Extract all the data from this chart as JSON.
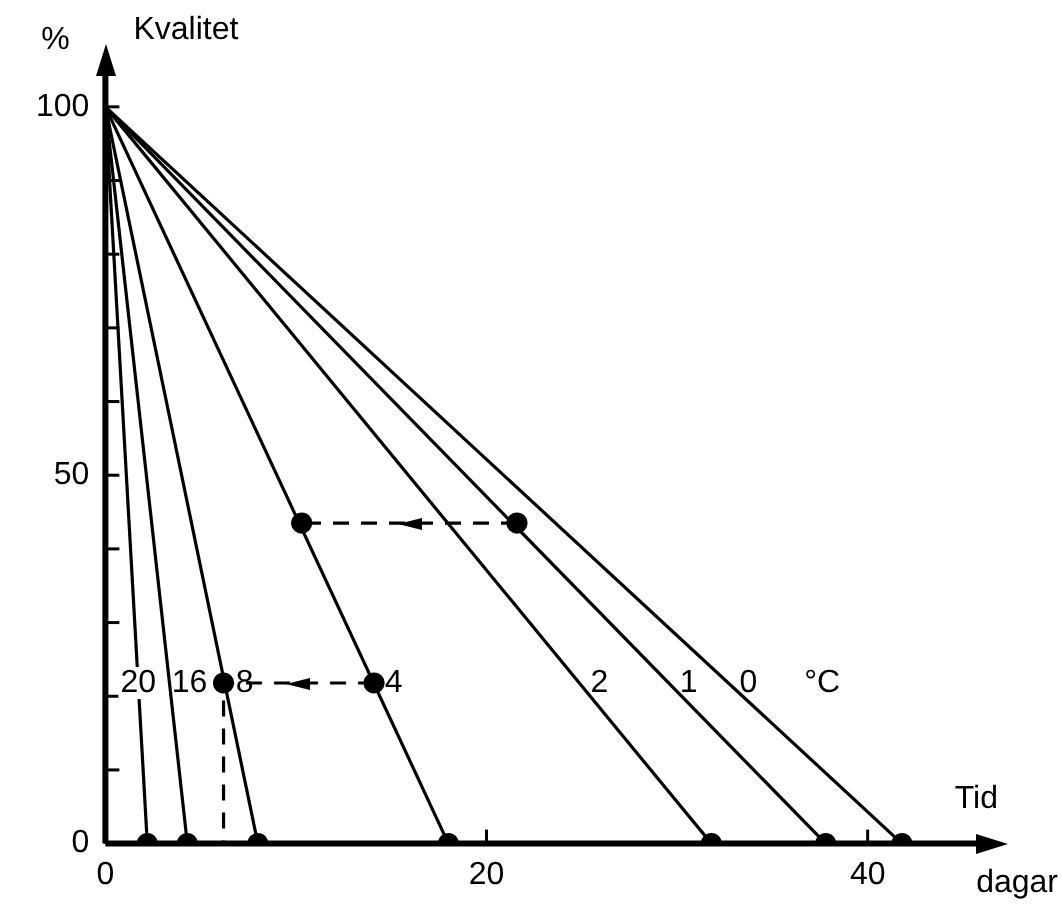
{
  "chart_data": {
    "type": "line",
    "xlabel": "Tid",
    "ylabel": "Kvalitet",
    "legend_title": "°C",
    "annotations": [
      "%",
      "dagar"
    ],
    "xlim": [
      0,
      46
    ],
    "ylim": [
      0,
      105
    ],
    "xticks": [
      0,
      20,
      40
    ],
    "yticks": [
      0,
      {
        "value": 10,
        "label": null
      },
      {
        "value": 20,
        "label": null
      },
      {
        "value": 30,
        "label": null
      },
      {
        "value": 40,
        "label": null
      },
      50,
      {
        "value": 60,
        "label": null
      },
      {
        "value": 70,
        "label": null
      },
      {
        "value": 80,
        "label": null
      },
      {
        "value": 90,
        "label": null
      },
      100
    ],
    "grid": false,
    "legend": "bottom left",
    "marker": "none",
    "line_style": "solid",
    "series": [
      {
        "name": "20",
        "color": "#000000",
        "x": [
          0,
          2.2
        ],
        "values": [
          100,
          0
        ]
      },
      {
        "name": "16",
        "color": "#000000",
        "x": [
          0,
          4.3
        ],
        "values": [
          100,
          0
        ]
      },
      {
        "name": "8",
        "color": "#000000",
        "x": [
          0,
          8
        ],
        "values": [
          100,
          0
        ]
      },
      {
        "name": "4",
        "color": "#000000",
        "x": [
          0,
          18
        ],
        "values": [
          100,
          0
        ]
      },
      {
        "name": "2",
        "color": "#000000",
        "x": [
          0,
          31.8
        ],
        "values": [
          100,
          0
        ]
      },
      {
        "name": "1",
        "color": "#000000",
        "x": [
          0,
          37.8
        ],
        "values": [
          100,
          0
        ]
      },
      {
        "name": "0",
        "color": "#000000",
        "x": [
          0,
          41.8
        ],
        "values": [
          100,
          0
        ]
      },
      {
        "type": "line",
        "line_style": "dashed",
        "color": "#000000",
        "x": [
          21.6,
          10.3
        ],
        "values": [
          43.5,
          43.5
        ]
      },
      {
        "type": "line",
        "line_style": "dashed",
        "color": "#000000",
        "x": [
          14.1,
          6.2,
          6.2
        ],
        "values": [
          21.8,
          21.8,
          0
        ]
      },
      {
        "type": "scatter",
        "marker": "circle",
        "color": "#000000",
        "x": [
          2.2,
          4.3,
          8,
          18,
          31.8,
          37.8,
          41.8,
          21.6,
          10.3,
          14.1,
          6.2
        ],
        "values": [
          0,
          0,
          0,
          0,
          0,
          0,
          0,
          43.5,
          43.5,
          21.8,
          21.8
        ]
      }
    ]
  }
}
